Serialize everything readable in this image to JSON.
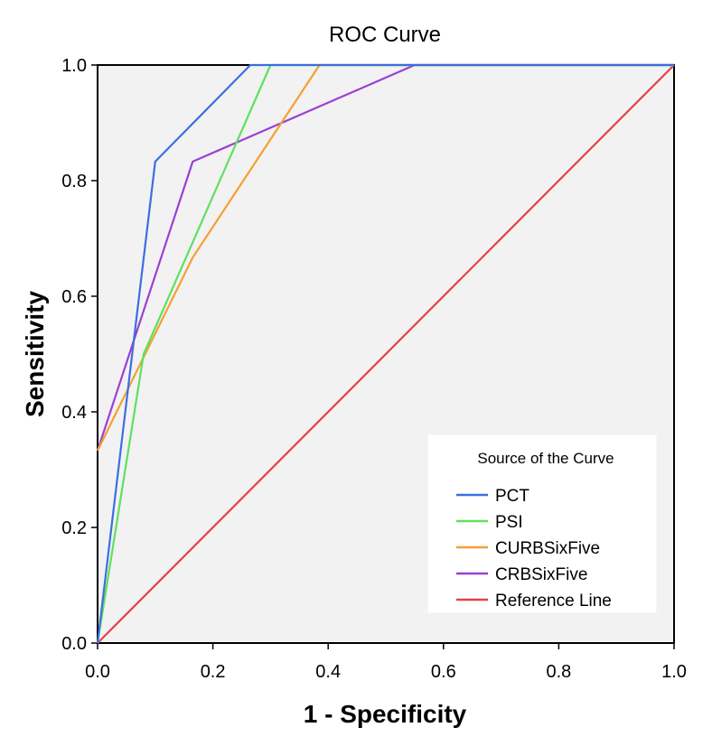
{
  "chart_data": {
    "type": "line",
    "title": "ROC Curve",
    "xlabel": "1 - Specificity",
    "ylabel": "Sensitivity",
    "xlim": [
      0,
      1
    ],
    "ylim": [
      0,
      1
    ],
    "xticks": [
      0,
      0.2,
      0.4,
      0.6,
      0.8,
      1
    ],
    "yticks": [
      0,
      0.2,
      0.4,
      0.6,
      0.8,
      1
    ],
    "xtick_labels": [
      "0.0",
      "0.2",
      "0.4",
      "0.6",
      "0.8",
      "1.0"
    ],
    "ytick_labels": [
      "0.0",
      "0.2",
      "0.4",
      "0.6",
      "0.8",
      "1.0"
    ],
    "grid": false,
    "background_color": "#f2f2f2",
    "legend": {
      "title": "Source of the Curve",
      "position": "bottom-right"
    },
    "series": [
      {
        "name": "PCT",
        "color": "#3b6fe0",
        "x": [
          0,
          0.1,
          0.265,
          1
        ],
        "y": [
          0,
          0.833,
          1,
          1
        ]
      },
      {
        "name": "PSI",
        "color": "#5fe05f",
        "x": [
          0,
          0.08,
          0.3,
          1
        ],
        "y": [
          0,
          0.5,
          1,
          1
        ]
      },
      {
        "name": "CURBSixFive",
        "color": "#f5a032",
        "x": [
          0,
          0.165,
          0.385,
          1
        ],
        "y": [
          0.333,
          0.667,
          1,
          1
        ]
      },
      {
        "name": "CRBSixFive",
        "color": "#9b3fd6",
        "x": [
          0,
          0.165,
          0.55,
          1
        ],
        "y": [
          0.333,
          0.833,
          1,
          1
        ]
      },
      {
        "name": "Reference Line",
        "color": "#e6404a",
        "x": [
          0,
          1
        ],
        "y": [
          0,
          1
        ]
      }
    ]
  }
}
